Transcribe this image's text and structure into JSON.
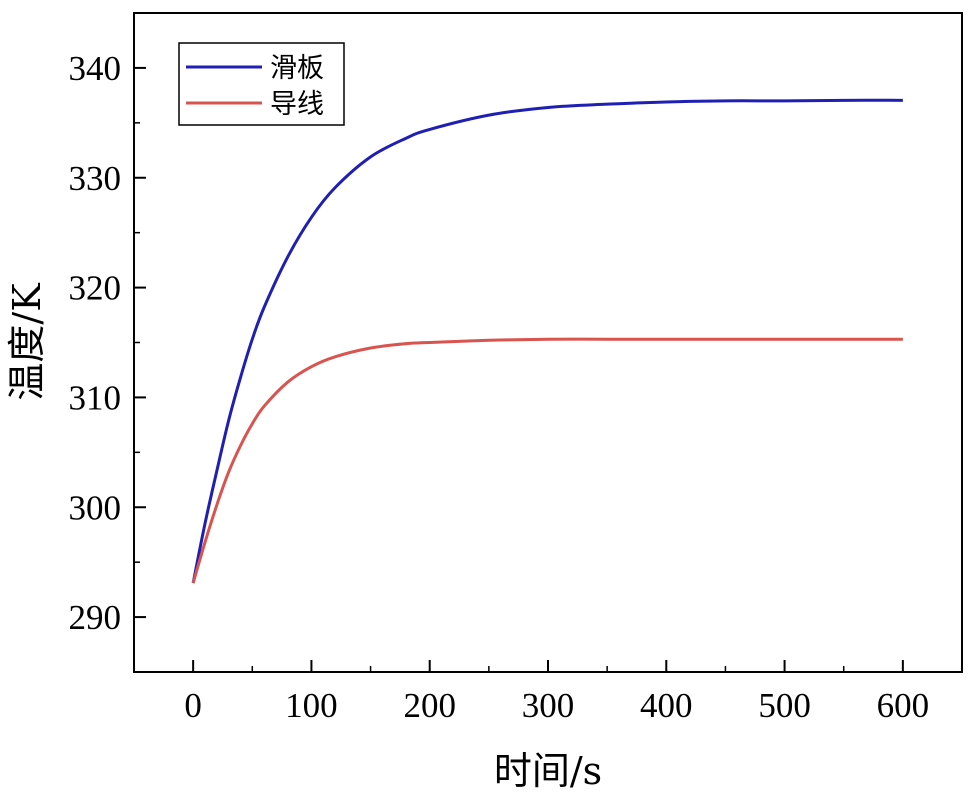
{
  "chart_data": {
    "type": "line",
    "title": "",
    "xlabel": "时间/s",
    "ylabel": "温度/K",
    "xlim": [
      -50,
      650
    ],
    "ylim": [
      285,
      345
    ],
    "xticks": [
      0,
      100,
      200,
      300,
      400,
      500,
      600
    ],
    "yticks": [
      290,
      300,
      310,
      320,
      330,
      340
    ],
    "xtick_labels": [
      "0",
      "100",
      "200",
      "300",
      "400",
      "500",
      "600"
    ],
    "ytick_labels": [
      "290",
      "300",
      "310",
      "320",
      "330",
      "340"
    ],
    "grid": false,
    "legend_position": "top-left",
    "x": [
      0,
      10,
      20,
      30,
      40,
      50,
      60,
      80,
      100,
      120,
      150,
      180,
      200,
      250,
      300,
      350,
      400,
      450,
      500,
      550,
      600
    ],
    "series": [
      {
        "name": "滑板",
        "color": "#1f1fb4",
        "values": [
          293.1,
          298.5,
          303.3,
          307.9,
          311.8,
          315.3,
          318.2,
          322.8,
          326.4,
          329.1,
          331.9,
          333.6,
          334.4,
          335.7,
          336.4,
          336.7,
          336.9,
          337.0,
          337.0,
          337.05,
          337.05
        ]
      },
      {
        "name": "导线",
        "color": "#d9534f",
        "values": [
          293.1,
          296.8,
          300.2,
          303.2,
          305.6,
          307.6,
          309.2,
          311.4,
          312.8,
          313.7,
          314.5,
          314.9,
          315.0,
          315.2,
          315.3,
          315.3,
          315.3,
          315.3,
          315.3,
          315.3,
          315.3
        ]
      }
    ]
  }
}
